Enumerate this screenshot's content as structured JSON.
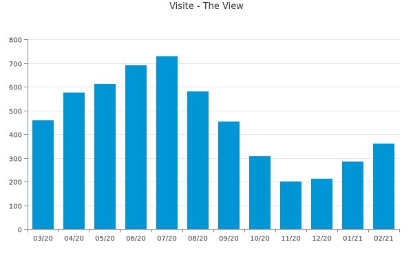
{
  "chart_data": {
    "type": "bar",
    "title": "Visite - The View",
    "categories": [
      "03/20",
      "04/20",
      "05/20",
      "06/20",
      "07/20",
      "08/20",
      "09/20",
      "10/20",
      "11/20",
      "12/20",
      "01/21",
      "02/21"
    ],
    "series": [
      {
        "values": [
          458,
          575,
          612,
          690,
          728,
          580,
          453,
          307,
          200,
          212,
          284,
          360
        ]
      }
    ],
    "ylim": [
      0,
      800
    ],
    "yticks": [
      0,
      100,
      200,
      300,
      400,
      500,
      600,
      700,
      800
    ],
    "ytick_labels": [
      "0",
      "100",
      "200",
      "300",
      "400",
      "500",
      "600",
      "700",
      "800"
    ],
    "xlabel": "",
    "ylabel": "",
    "grid": true,
    "bar_color": "#0096d6",
    "grid_color": "#e6e6e6",
    "axis_color": "#888888",
    "text_color": "#333333"
  }
}
